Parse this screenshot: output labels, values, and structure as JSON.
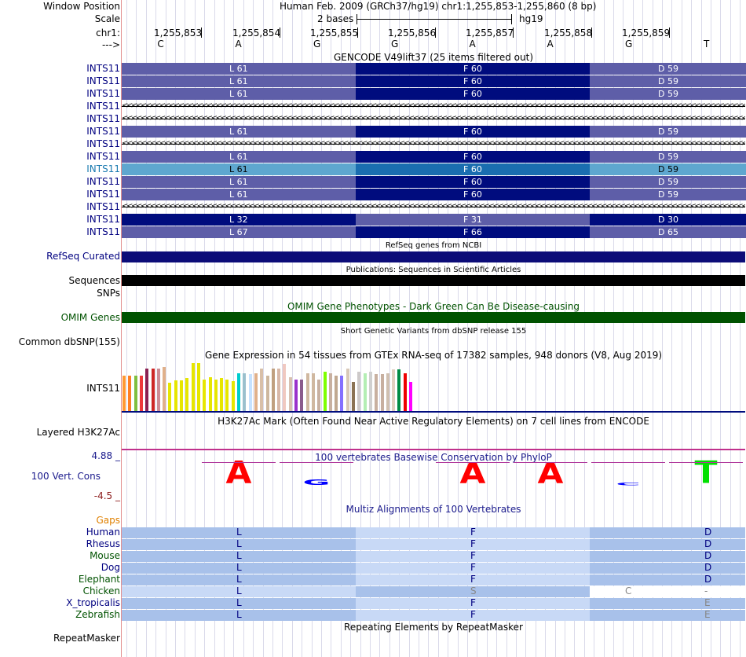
{
  "colors": {
    "dark_navy": "#000c7e",
    "mid_purple": "#5e5ea8",
    "highlight_light": "#5ea7cf",
    "highlight_dark": "#1a6eb0",
    "refseq": "#0c0c78",
    "omim": "#005200",
    "maf_dark": "#a8c1ea",
    "maf_light": "#c8d9f6",
    "label_navy": "#000080",
    "label_green": "#005200"
  },
  "header": {
    "window_position_label": "Window Position",
    "window_position_value": "Human Feb. 2009 (GRCh37/hg19)   chr1:1,255,853-1,255,860 (8 bp)",
    "scale_label": "Scale",
    "scale_text": "2 bases",
    "assembly": "hg19",
    "chrom_label": "chr1:",
    "strand_label": "--->",
    "positions": [
      "1,255,853",
      "1,255,854",
      "1,255,855",
      "1,255,856",
      "1,255,857",
      "1,255,858",
      "1,255,859"
    ],
    "bases": [
      "C",
      "A",
      "G",
      "G",
      "A",
      "A",
      "G",
      "T"
    ]
  },
  "gencode": {
    "title": "GENCODE V49lift37 (25 items filtered out)",
    "rows": [
      {
        "label": "INTS11",
        "kind": "coding",
        "a": "L 61",
        "b": "F 60",
        "c": "D 59"
      },
      {
        "label": "INTS11",
        "kind": "coding",
        "a": "L 61",
        "b": "F 60",
        "c": "D 59"
      },
      {
        "label": "INTS11",
        "kind": "coding",
        "a": "L 61",
        "b": "F 60",
        "c": "D 59"
      },
      {
        "label": "INTS11",
        "kind": "intron"
      },
      {
        "label": "INTS11",
        "kind": "intron"
      },
      {
        "label": "INTS11",
        "kind": "coding",
        "a": "L 61",
        "b": "F 60",
        "c": "D 59"
      },
      {
        "label": "INTS11",
        "kind": "intron"
      },
      {
        "label": "INTS11",
        "kind": "coding",
        "a": "L 61",
        "b": "F 60",
        "c": "D 59"
      },
      {
        "label": "INTS11",
        "kind": "highlight",
        "a": "L 61",
        "b": "F 60",
        "c": "D 59"
      },
      {
        "label": "INTS11",
        "kind": "coding",
        "a": "L 61",
        "b": "F 60",
        "c": "D 59"
      },
      {
        "label": "INTS11",
        "kind": "coding",
        "a": "L 61",
        "b": "F 60",
        "c": "D 59"
      },
      {
        "label": "INTS11",
        "kind": "intron"
      },
      {
        "label": "INTS11",
        "kind": "frame2",
        "a": "L 32",
        "b": "F 31",
        "c": "D 30"
      },
      {
        "label": "INTS11",
        "kind": "coding",
        "a": "L 67",
        "b": "F 66",
        "c": "D 65"
      }
    ]
  },
  "refseq": {
    "title": "RefSeq genes from NCBI",
    "label": "RefSeq Curated"
  },
  "publications": {
    "title": "Publications: Sequences in Scientific Articles",
    "label": "Sequences"
  },
  "snps": {
    "label": "SNPs"
  },
  "omim": {
    "title": "OMIM Gene Phenotypes - Dark Green Can Be Disease-causing",
    "label": "OMIM Genes"
  },
  "dbsnp": {
    "title": "Short Genetic Variants from dbSNP release 155",
    "label": "Common dbSNP(155)"
  },
  "gtex": {
    "title": "Gene Expression in 54 tissues from GTEx RNA-seq of 17382 samples, 948 donors (V8, Aug 2019)",
    "label": "INTS11",
    "bars": [
      {
        "c": "#ff9933",
        "v": 0.73
      },
      {
        "c": "#ff7f24",
        "v": 0.73
      },
      {
        "c": "#7fbf3f",
        "v": 0.73
      },
      {
        "c": "#ee3b3b",
        "v": 0.73
      },
      {
        "c": "#8b2252",
        "v": 0.87
      },
      {
        "c": "#cd2626",
        "v": 0.87
      },
      {
        "c": "#cd8c95",
        "v": 0.87
      },
      {
        "c": "#e0b08a",
        "v": 0.9
      },
      {
        "c": "#e6e600",
        "v": 0.58
      },
      {
        "c": "#e6e600",
        "v": 0.63
      },
      {
        "c": "#e6e600",
        "v": 0.63
      },
      {
        "c": "#e6e600",
        "v": 0.67
      },
      {
        "c": "#e6e600",
        "v": 0.98
      },
      {
        "c": "#e6e600",
        "v": 0.98
      },
      {
        "c": "#e6e600",
        "v": 0.65
      },
      {
        "c": "#e6e600",
        "v": 0.7
      },
      {
        "c": "#e6e600",
        "v": 0.65
      },
      {
        "c": "#e6e600",
        "v": 0.67
      },
      {
        "c": "#e6e600",
        "v": 0.65
      },
      {
        "c": "#e6e600",
        "v": 0.62
      },
      {
        "c": "#00cdcd",
        "v": 0.78
      },
      {
        "c": "#9ac0cd",
        "v": 0.77
      },
      {
        "c": "#c6e2ff",
        "v": 0.75
      },
      {
        "c": "#e0b08a",
        "v": 0.78
      },
      {
        "c": "#d8bfa8",
        "v": 0.87
      },
      {
        "c": "#cdb79e",
        "v": 0.73
      },
      {
        "c": "#c0a080",
        "v": 0.87
      },
      {
        "c": "#d8b8a8",
        "v": 0.87
      },
      {
        "c": "#f0c8c0",
        "v": 0.97
      },
      {
        "c": "#d8c0b0",
        "v": 0.7
      },
      {
        "c": "#9932cc",
        "v": 0.65
      },
      {
        "c": "#8b5a8b",
        "v": 0.65
      },
      {
        "c": "#d0b8a0",
        "v": 0.77
      },
      {
        "c": "#d0b8a0",
        "v": 0.77
      },
      {
        "c": "#c8b0a0",
        "v": 0.65
      },
      {
        "c": "#7fff00",
        "v": 0.8
      },
      {
        "c": "#c8b0a0",
        "v": 0.77
      },
      {
        "c": "#c0a890",
        "v": 0.72
      },
      {
        "c": "#8470ff",
        "v": 0.72
      },
      {
        "c": "#d8c8b8",
        "v": 0.87
      },
      {
        "c": "#8b7355",
        "v": 0.6
      },
      {
        "c": "#cdc9c9",
        "v": 0.8
      },
      {
        "c": "#b4eeb4",
        "v": 0.77
      },
      {
        "c": "#d0d0d0",
        "v": 0.8
      },
      {
        "c": "#c8b0a0",
        "v": 0.75
      },
      {
        "c": "#c8b0a0",
        "v": 0.75
      },
      {
        "c": "#d0c0b0",
        "v": 0.77
      },
      {
        "c": "#e0d0c0",
        "v": 0.85
      },
      {
        "c": "#008b45",
        "v": 0.85
      },
      {
        "c": "#ee0000",
        "v": 0.77
      },
      {
        "c": "#ff00ff",
        "v": 0.6
      }
    ]
  },
  "h3k27ac": {
    "title": "H3K27Ac Mark (Often Found Near Active Regulatory Elements) on 7 cell lines from ENCODE",
    "label": "Layered H3K27Ac"
  },
  "phylop": {
    "title": "100 vertebrates Basewise Conservation by PhyloP",
    "label": "100 Vert. Cons",
    "ymax": "4.88 _",
    "ymin": "-4.5 _",
    "logos": [
      {
        "letter": "A",
        "color": "#ff0000",
        "score": 1.0
      },
      {
        "letter": "G",
        "color": "#0000ff",
        "score": 0.25
      },
      {
        "letter": "A",
        "color": "#ff0000",
        "score": 0.95
      },
      {
        "letter": "A",
        "color": "#ff0000",
        "score": 0.95
      },
      {
        "letter": "C",
        "color": "#0000ff",
        "score": 0.12
      },
      {
        "letter": "T",
        "color": "#00e000",
        "score": 1.0
      }
    ]
  },
  "multiz": {
    "title": "Multiz Alignments of 100 Vertebrates",
    "gaps_label": "Gaps",
    "species": [
      {
        "name": "Human",
        "color": "#000080",
        "a": "L",
        "b": "F",
        "c": "D",
        "dim": false
      },
      {
        "name": "Rhesus",
        "color": "#000080",
        "a": "L",
        "b": "F",
        "c": "D",
        "dim": false
      },
      {
        "name": "Mouse",
        "color": "#005200",
        "a": "L",
        "b": "F",
        "c": "D",
        "dim": false
      },
      {
        "name": "Dog",
        "color": "#000080",
        "a": "L",
        "b": "F",
        "c": "D",
        "dim": false
      },
      {
        "name": "Elephant",
        "color": "#005200",
        "a": "L",
        "b": "F",
        "c": "D",
        "dim": false
      },
      {
        "name": "Chicken",
        "color": "#005200",
        "a": "L",
        "b": "S",
        "cx": "C",
        "c": "-",
        "dim": true
      },
      {
        "name": "X_tropicalis",
        "color": "#000080",
        "a": "L",
        "b": "F",
        "c": "E",
        "dim": false
      },
      {
        "name": "Zebrafish",
        "color": "#005200",
        "a": "L",
        "b": "F",
        "c": "E",
        "dim": false
      }
    ]
  },
  "repeatmasker": {
    "title": "Repeating Elements by RepeatMasker",
    "label": "RepeatMasker"
  }
}
